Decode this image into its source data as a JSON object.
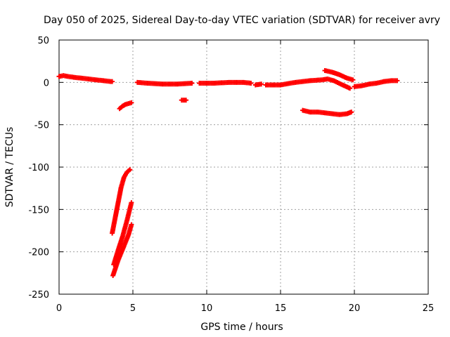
{
  "chart_data": {
    "type": "scatter",
    "title": "Day 050 of 2025, Sidereal Day-to-day VTEC variation (SDTVAR) for receiver avry",
    "xlabel": "GPS time / hours",
    "ylabel": "SDTVAR / TECUs",
    "xlim": [
      0,
      25
    ],
    "ylim": [
      -250,
      50
    ],
    "xticks": [
      0,
      5,
      10,
      15,
      20,
      25
    ],
    "yticks": [
      50,
      0,
      -50,
      -100,
      -150,
      -200,
      -250
    ],
    "grid": true,
    "marker": "+",
    "color": "#ff0000",
    "series": [
      {
        "name": "track-1",
        "points": [
          [
            0.0,
            7
          ],
          [
            0.3,
            8
          ],
          [
            0.6,
            7
          ],
          [
            1.0,
            6
          ],
          [
            1.5,
            5
          ],
          [
            2.0,
            4
          ],
          [
            2.5,
            3
          ],
          [
            3.0,
            2
          ],
          [
            3.5,
            1
          ],
          [
            3.6,
            1
          ]
        ]
      },
      {
        "name": "track-2",
        "points": [
          [
            4.1,
            -31
          ],
          [
            4.3,
            -28
          ],
          [
            4.5,
            -26
          ],
          [
            4.7,
            -25
          ],
          [
            4.9,
            -24
          ]
        ]
      },
      {
        "name": "track-3",
        "points": [
          [
            3.6,
            -178
          ],
          [
            3.8,
            -160
          ],
          [
            4.0,
            -142
          ],
          [
            4.2,
            -124
          ],
          [
            4.4,
            -112
          ],
          [
            4.6,
            -106
          ],
          [
            4.8,
            -103
          ]
        ]
      },
      {
        "name": "track-4",
        "points": [
          [
            3.7,
            -215
          ],
          [
            4.0,
            -198
          ],
          [
            4.3,
            -182
          ],
          [
            4.6,
            -163
          ],
          [
            4.9,
            -142
          ]
        ]
      },
      {
        "name": "track-5",
        "points": [
          [
            3.65,
            -228
          ],
          [
            4.0,
            -210
          ],
          [
            4.4,
            -193
          ],
          [
            4.7,
            -180
          ],
          [
            4.9,
            -168
          ]
        ]
      },
      {
        "name": "track-6",
        "points": [
          [
            5.3,
            0
          ],
          [
            6.0,
            -1
          ],
          [
            7.0,
            -2
          ],
          [
            8.0,
            -2
          ],
          [
            9.0,
            -1
          ]
        ]
      },
      {
        "name": "track-7",
        "points": [
          [
            8.3,
            -21
          ],
          [
            8.6,
            -21
          ]
        ]
      },
      {
        "name": "track-8",
        "points": [
          [
            9.5,
            -1
          ],
          [
            10.5,
            -1
          ],
          [
            11.5,
            0
          ],
          [
            12.5,
            0
          ],
          [
            13.0,
            -1
          ]
        ]
      },
      {
        "name": "track-9",
        "points": [
          [
            13.3,
            -3
          ],
          [
            13.7,
            -2
          ]
        ]
      },
      {
        "name": "track-10",
        "points": [
          [
            14.0,
            -3
          ],
          [
            15.0,
            -3
          ],
          [
            16.0,
            0
          ],
          [
            17.0,
            2
          ],
          [
            17.8,
            3
          ],
          [
            18.2,
            4
          ],
          [
            18.6,
            2
          ],
          [
            19.2,
            -3
          ],
          [
            19.7,
            -7
          ]
        ]
      },
      {
        "name": "track-11",
        "points": [
          [
            18.0,
            14
          ],
          [
            18.5,
            12
          ],
          [
            19.0,
            9
          ],
          [
            19.5,
            5
          ],
          [
            19.9,
            3
          ]
        ]
      },
      {
        "name": "track-12",
        "points": [
          [
            16.5,
            -33
          ],
          [
            17.0,
            -35
          ],
          [
            17.5,
            -35
          ],
          [
            18.0,
            -36
          ],
          [
            18.5,
            -37
          ],
          [
            19.0,
            -38
          ],
          [
            19.5,
            -37
          ],
          [
            19.8,
            -35
          ]
        ]
      },
      {
        "name": "track-13",
        "points": [
          [
            20.0,
            -5
          ],
          [
            20.5,
            -4
          ],
          [
            21.0,
            -2
          ],
          [
            21.5,
            -1
          ],
          [
            22.0,
            1
          ],
          [
            22.5,
            2
          ],
          [
            22.9,
            2
          ]
        ]
      }
    ]
  }
}
